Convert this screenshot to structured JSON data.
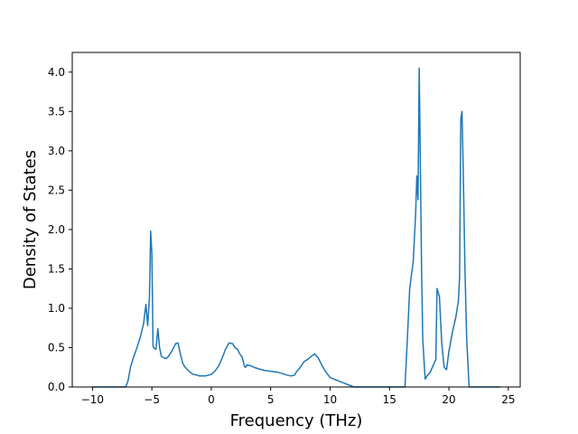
{
  "chart_data": {
    "type": "line",
    "title": "",
    "xlabel": "Frequency (THz)",
    "ylabel": "Density of States",
    "xlim": [
      -11.7,
      26.0
    ],
    "ylim": [
      0,
      4.25
    ],
    "xticks": [
      -10,
      -5,
      0,
      5,
      10,
      15,
      20,
      25
    ],
    "xtick_labels": [
      "−10",
      "−5",
      "0",
      "5",
      "10",
      "15",
      "20",
      "25"
    ],
    "yticks": [
      0.0,
      0.5,
      1.0,
      1.5,
      2.0,
      2.5,
      3.0,
      3.5,
      4.0
    ],
    "ytick_labels": [
      "0.0",
      "0.5",
      "1.0",
      "1.5",
      "2.0",
      "2.5",
      "3.0",
      "3.5",
      "4.0"
    ],
    "grid": false,
    "series": [
      {
        "color": "#1f77b4",
        "x": [
          -10.0,
          -7.2,
          -7.0,
          -6.8,
          -6.6,
          -6.3,
          -6.0,
          -5.7,
          -5.5,
          -5.35,
          -5.2,
          -5.1,
          -5.0,
          -4.9,
          -4.8,
          -4.65,
          -4.5,
          -4.35,
          -4.2,
          -4.0,
          -3.8,
          -3.6,
          -3.3,
          -3.0,
          -2.8,
          -2.6,
          -2.4,
          -2.2,
          -2.0,
          -1.8,
          -1.5,
          -1.2,
          -1.0,
          -0.5,
          0.0,
          0.3,
          0.6,
          0.9,
          1.2,
          1.5,
          1.8,
          2.0,
          2.2,
          2.4,
          2.6,
          2.8,
          2.9,
          3.0,
          3.3,
          3.6,
          4.0,
          4.5,
          5.0,
          5.5,
          6.0,
          6.4,
          6.7,
          7.0,
          7.2,
          7.5,
          7.8,
          8.2,
          8.5,
          8.7,
          9.0,
          9.3,
          9.6,
          10.0,
          11.0,
          12.0,
          16.3,
          16.5,
          16.7,
          17.0,
          17.2,
          17.3,
          17.4,
          17.5,
          17.6,
          17.7,
          17.8,
          18.0,
          18.2,
          18.4,
          18.7,
          18.9,
          19.0,
          19.2,
          19.4,
          19.6,
          19.8,
          20.0,
          20.3,
          20.6,
          20.8,
          20.9,
          21.0,
          21.1,
          21.2,
          21.35,
          21.5,
          21.7,
          22.0,
          24.3
        ],
        "y": [
          0.0,
          0.0,
          0.08,
          0.25,
          0.35,
          0.48,
          0.62,
          0.8,
          1.05,
          0.78,
          1.15,
          1.98,
          1.7,
          0.52,
          0.49,
          0.48,
          0.74,
          0.5,
          0.39,
          0.37,
          0.36,
          0.39,
          0.46,
          0.55,
          0.56,
          0.42,
          0.3,
          0.25,
          0.22,
          0.19,
          0.16,
          0.15,
          0.14,
          0.14,
          0.16,
          0.2,
          0.26,
          0.36,
          0.48,
          0.56,
          0.55,
          0.5,
          0.48,
          0.42,
          0.38,
          0.26,
          0.25,
          0.28,
          0.27,
          0.25,
          0.23,
          0.21,
          0.2,
          0.19,
          0.17,
          0.15,
          0.14,
          0.15,
          0.2,
          0.25,
          0.32,
          0.36,
          0.4,
          0.42,
          0.37,
          0.28,
          0.2,
          0.12,
          0.06,
          0.0,
          0.0,
          0.6,
          1.25,
          1.6,
          2.2,
          2.68,
          2.38,
          4.05,
          2.8,
          1.5,
          0.6,
          0.1,
          0.15,
          0.18,
          0.28,
          0.35,
          1.25,
          1.15,
          0.55,
          0.25,
          0.22,
          0.45,
          0.7,
          0.9,
          1.1,
          1.4,
          3.4,
          3.5,
          2.8,
          1.5,
          0.6,
          0.0,
          0.0,
          0.0
        ]
      }
    ]
  }
}
